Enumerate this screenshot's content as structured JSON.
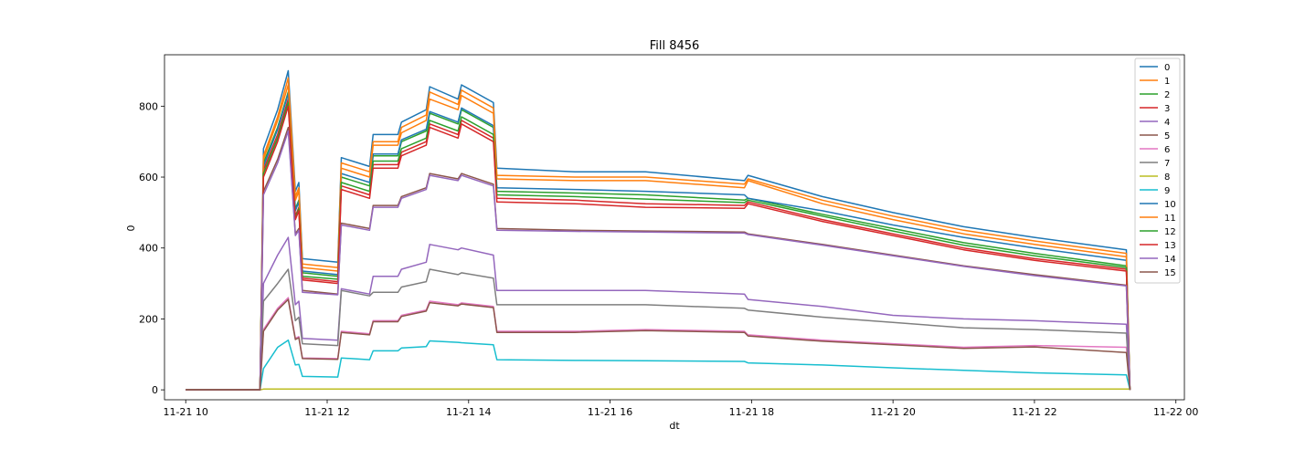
{
  "chart_data": {
    "type": "line",
    "title": "Fill 8456",
    "xlabel": "dt",
    "ylabel": "0",
    "x_unit": "hours (day 11-21)",
    "xlim": [
      9.7,
      24.12
    ],
    "ylim": [
      -28,
      945
    ],
    "x_ticks": [
      {
        "x": 10,
        "label": "11-21 10"
      },
      {
        "x": 12,
        "label": "11-21 12"
      },
      {
        "x": 14,
        "label": "11-21 14"
      },
      {
        "x": 16,
        "label": "11-21 16"
      },
      {
        "x": 18,
        "label": "11-21 18"
      },
      {
        "x": 20,
        "label": "11-21 20"
      },
      {
        "x": 22,
        "label": "11-21 22"
      },
      {
        "x": 24,
        "label": "11-22 00"
      }
    ],
    "y_ticks": [
      {
        "y": 0,
        "label": "0"
      },
      {
        "y": 200,
        "label": "200"
      },
      {
        "y": 400,
        "label": "400"
      },
      {
        "y": 600,
        "label": "600"
      },
      {
        "y": 800,
        "label": "800"
      }
    ],
    "grid": false,
    "legend_position": "top-right",
    "series": [
      {
        "name": "0",
        "color": "#1f77b4",
        "x": [
          10.0,
          11.05,
          11.1,
          11.3,
          11.45,
          11.55,
          11.6,
          11.65,
          12.15,
          12.2,
          12.6,
          12.65,
          13.0,
          13.05,
          13.4,
          13.45,
          13.85,
          13.9,
          14.35,
          14.4,
          15.5,
          16.5,
          17.9,
          17.95,
          19.0,
          20.0,
          21.0,
          22.0,
          23.3,
          23.35
        ],
        "values": [
          0,
          0,
          680,
          790,
          900,
          560,
          585,
          370,
          360,
          655,
          630,
          720,
          720,
          755,
          790,
          855,
          820,
          860,
          810,
          625,
          615,
          615,
          590,
          605,
          545,
          500,
          460,
          430,
          395,
          0
        ]
      },
      {
        "name": "1",
        "color": "#ff7f0e",
        "x": [
          10.0,
          11.05,
          11.1,
          11.3,
          11.45,
          11.55,
          11.6,
          11.65,
          12.15,
          12.2,
          12.6,
          12.65,
          13.0,
          13.05,
          13.4,
          13.45,
          13.85,
          13.9,
          14.35,
          14.4,
          15.5,
          16.5,
          17.9,
          17.95,
          19.0,
          20.0,
          21.0,
          22.0,
          23.3,
          23.35
        ],
        "values": [
          0,
          0,
          660,
          770,
          880,
          545,
          570,
          355,
          345,
          640,
          615,
          700,
          700,
          740,
          775,
          840,
          805,
          845,
          795,
          605,
          600,
          600,
          580,
          595,
          535,
          490,
          450,
          420,
          385,
          0
        ]
      },
      {
        "name": "2",
        "color": "#2ca02c",
        "x": [
          10.0,
          11.05,
          11.1,
          11.3,
          11.45,
          11.55,
          11.6,
          11.65,
          12.15,
          12.2,
          12.6,
          12.65,
          13.0,
          13.05,
          13.4,
          13.45,
          13.85,
          13.9,
          14.35,
          14.4,
          15.5,
          16.5,
          17.9,
          17.95,
          19.0,
          20.0,
          21.0,
          22.0,
          23.3,
          23.35
        ],
        "values": [
          0,
          0,
          640,
          740,
          840,
          510,
          535,
          330,
          320,
          600,
          575,
          660,
          660,
          700,
          730,
          780,
          750,
          790,
          740,
          560,
          555,
          550,
          535,
          540,
          495,
          455,
          415,
          385,
          350,
          0
        ]
      },
      {
        "name": "3",
        "color": "#d62728",
        "x": [
          10.0,
          11.05,
          11.1,
          11.3,
          11.45,
          11.55,
          11.6,
          11.65,
          12.15,
          12.2,
          12.6,
          12.65,
          13.0,
          13.05,
          13.4,
          13.45,
          13.85,
          13.9,
          14.35,
          14.4,
          15.5,
          16.5,
          17.9,
          17.95,
          19.0,
          20.0,
          21.0,
          22.0,
          23.3,
          23.35
        ],
        "values": [
          0,
          0,
          620,
          720,
          820,
          490,
          515,
          315,
          305,
          575,
          550,
          635,
          635,
          670,
          700,
          750,
          720,
          760,
          710,
          540,
          535,
          525,
          520,
          530,
          480,
          440,
          400,
          370,
          340,
          0
        ]
      },
      {
        "name": "4",
        "color": "#9467bd",
        "x": [
          10.0,
          11.05,
          11.1,
          11.3,
          11.45,
          11.55,
          11.6,
          11.65,
          12.15,
          12.2,
          12.6,
          12.65,
          13.0,
          13.05,
          13.4,
          13.45,
          13.85,
          13.9,
          14.35,
          14.4,
          15.5,
          16.5,
          17.9,
          17.95,
          19.0,
          20.0,
          21.0,
          22.0,
          23.3,
          23.35
        ],
        "values": [
          0,
          0,
          300,
          380,
          430,
          240,
          250,
          145,
          140,
          285,
          270,
          320,
          320,
          340,
          360,
          410,
          395,
          400,
          380,
          280,
          280,
          280,
          270,
          255,
          235,
          210,
          200,
          195,
          185,
          0
        ]
      },
      {
        "name": "5",
        "color": "#8c564b",
        "x": [
          10.0,
          11.05,
          11.1,
          11.3,
          11.45,
          11.55,
          11.6,
          11.65,
          12.15,
          12.2,
          12.6,
          12.65,
          13.0,
          13.05,
          13.4,
          13.45,
          13.85,
          13.9,
          14.35,
          14.4,
          15.5,
          16.5,
          17.9,
          17.95,
          19.0,
          20.0,
          21.0,
          22.0,
          23.3,
          23.35
        ],
        "values": [
          0,
          0,
          560,
          650,
          740,
          440,
          455,
          280,
          270,
          470,
          455,
          520,
          520,
          545,
          570,
          610,
          595,
          610,
          580,
          455,
          450,
          448,
          445,
          440,
          410,
          380,
          350,
          325,
          295,
          0
        ]
      },
      {
        "name": "6",
        "color": "#e377c2",
        "x": [
          10.0,
          11.05,
          11.1,
          11.3,
          11.45,
          11.55,
          11.6,
          11.65,
          12.15,
          12.2,
          12.6,
          12.65,
          13.0,
          13.05,
          13.4,
          13.45,
          13.85,
          13.9,
          14.35,
          14.4,
          15.5,
          16.5,
          17.9,
          17.95,
          19.0,
          20.0,
          21.0,
          22.0,
          23.3,
          23.35
        ],
        "values": [
          0,
          0,
          170,
          230,
          260,
          145,
          150,
          90,
          88,
          165,
          158,
          195,
          195,
          210,
          225,
          250,
          240,
          245,
          235,
          165,
          165,
          170,
          165,
          155,
          140,
          130,
          120,
          125,
          120,
          0
        ]
      },
      {
        "name": "7",
        "color": "#7f7f7f",
        "x": [
          10.0,
          11.05,
          11.1,
          11.3,
          11.45,
          11.55,
          11.6,
          11.65,
          12.15,
          12.2,
          12.6,
          12.65,
          13.0,
          13.05,
          13.4,
          13.45,
          13.85,
          13.9,
          14.35,
          14.4,
          15.5,
          16.5,
          17.9,
          17.95,
          19.0,
          20.0,
          21.0,
          22.0,
          23.3,
          23.35
        ],
        "values": [
          0,
          0,
          250,
          300,
          340,
          195,
          205,
          130,
          125,
          280,
          265,
          275,
          275,
          290,
          305,
          340,
          325,
          330,
          315,
          240,
          240,
          240,
          230,
          225,
          205,
          190,
          175,
          170,
          160,
          0
        ]
      },
      {
        "name": "8",
        "color": "#bcbd22",
        "x": [
          10.0,
          11.05,
          11.1,
          23.35
        ],
        "values": [
          0,
          0,
          2,
          2
        ]
      },
      {
        "name": "9",
        "color": "#17becf",
        "x": [
          10.0,
          11.05,
          11.1,
          11.3,
          11.45,
          11.55,
          11.6,
          11.65,
          12.15,
          12.2,
          12.6,
          12.65,
          13.0,
          13.05,
          13.4,
          13.45,
          13.85,
          13.9,
          14.35,
          14.4,
          15.5,
          16.5,
          17.9,
          17.95,
          19.0,
          20.0,
          21.0,
          22.0,
          23.3,
          23.35
        ],
        "values": [
          0,
          0,
          60,
          120,
          140,
          70,
          72,
          38,
          36,
          90,
          85,
          110,
          110,
          118,
          122,
          138,
          134,
          133,
          127,
          85,
          83,
          82,
          80,
          76,
          70,
          62,
          55,
          48,
          42,
          0
        ]
      },
      {
        "name": "10",
        "color": "#1f77b4",
        "x": [
          10.0,
          11.05,
          11.1,
          11.3,
          11.45,
          11.55,
          11.6,
          11.65,
          12.15,
          12.2,
          12.6,
          12.65,
          13.0,
          13.05,
          13.4,
          13.45,
          13.85,
          13.9,
          14.35,
          14.4,
          15.5,
          16.5,
          17.9,
          17.95,
          19.0,
          20.0,
          21.0,
          22.0,
          23.3,
          23.35
        ],
        "values": [
          0,
          0,
          630,
          735,
          835,
          505,
          530,
          335,
          325,
          610,
          585,
          665,
          665,
          705,
          735,
          785,
          755,
          795,
          745,
          570,
          565,
          560,
          550,
          540,
          505,
          465,
          430,
          400,
          365,
          0
        ]
      },
      {
        "name": "11",
        "color": "#ff7f0e",
        "x": [
          10.0,
          11.05,
          11.1,
          11.3,
          11.45,
          11.55,
          11.6,
          11.65,
          12.15,
          12.2,
          12.6,
          12.65,
          13.0,
          13.05,
          13.4,
          13.45,
          13.85,
          13.9,
          14.35,
          14.4,
          15.5,
          16.5,
          17.9,
          17.95,
          19.0,
          20.0,
          21.0,
          22.0,
          23.3,
          23.35
        ],
        "values": [
          0,
          0,
          650,
          760,
          860,
          535,
          560,
          345,
          335,
          625,
          600,
          690,
          690,
          725,
          760,
          820,
          790,
          830,
          780,
          595,
          590,
          590,
          570,
          590,
          525,
          480,
          440,
          410,
          375,
          0
        ]
      },
      {
        "name": "12",
        "color": "#2ca02c",
        "x": [
          10.0,
          11.05,
          11.1,
          11.3,
          11.45,
          11.55,
          11.6,
          11.65,
          12.15,
          12.2,
          12.6,
          12.65,
          13.0,
          13.05,
          13.4,
          13.45,
          13.85,
          13.9,
          14.35,
          14.4,
          15.5,
          16.5,
          17.9,
          17.95,
          19.0,
          20.0,
          21.0,
          22.0,
          23.3,
          23.35
        ],
        "values": [
          0,
          0,
          610,
          710,
          810,
          485,
          510,
          320,
          312,
          585,
          560,
          645,
          645,
          680,
          710,
          760,
          730,
          770,
          720,
          550,
          545,
          538,
          528,
          535,
          490,
          448,
          408,
          378,
          345,
          0
        ]
      },
      {
        "name": "13",
        "color": "#d62728",
        "x": [
          10.0,
          11.05,
          11.1,
          11.3,
          11.45,
          11.55,
          11.6,
          11.65,
          12.15,
          12.2,
          12.6,
          12.65,
          13.0,
          13.05,
          13.4,
          13.45,
          13.85,
          13.9,
          14.35,
          14.4,
          15.5,
          16.5,
          17.9,
          17.95,
          19.0,
          20.0,
          21.0,
          22.0,
          23.3,
          23.35
        ],
        "values": [
          0,
          0,
          600,
          700,
          800,
          480,
          505,
          310,
          300,
          565,
          540,
          625,
          625,
          660,
          690,
          740,
          710,
          750,
          700,
          530,
          525,
          515,
          512,
          525,
          475,
          435,
          395,
          365,
          335,
          0
        ]
      },
      {
        "name": "14",
        "color": "#9467bd",
        "x": [
          10.0,
          11.05,
          11.1,
          11.3,
          11.45,
          11.55,
          11.6,
          11.65,
          12.15,
          12.2,
          12.6,
          12.65,
          13.0,
          13.05,
          13.4,
          13.45,
          13.85,
          13.9,
          14.35,
          14.4,
          15.5,
          16.5,
          17.9,
          17.95,
          19.0,
          20.0,
          21.0,
          22.0,
          23.3,
          23.35
        ],
        "values": [
          0,
          0,
          550,
          640,
          730,
          435,
          450,
          275,
          268,
          465,
          450,
          515,
          515,
          540,
          565,
          605,
          590,
          605,
          575,
          450,
          447,
          445,
          442,
          438,
          408,
          378,
          348,
          322,
          293,
          0
        ]
      },
      {
        "name": "15",
        "color": "#8c564b",
        "x": [
          10.0,
          11.05,
          11.1,
          11.3,
          11.45,
          11.55,
          11.6,
          11.65,
          12.15,
          12.2,
          12.6,
          12.65,
          13.0,
          13.05,
          13.4,
          13.45,
          13.85,
          13.9,
          14.35,
          14.4,
          15.5,
          16.5,
          17.9,
          17.95,
          19.0,
          20.0,
          21.0,
          22.0,
          23.3,
          23.35
        ],
        "values": [
          0,
          0,
          165,
          225,
          255,
          142,
          147,
          88,
          86,
          162,
          155,
          192,
          192,
          207,
          222,
          246,
          237,
          242,
          232,
          162,
          162,
          167,
          162,
          152,
          137,
          127,
          117,
          121,
          105,
          0
        ]
      }
    ]
  }
}
